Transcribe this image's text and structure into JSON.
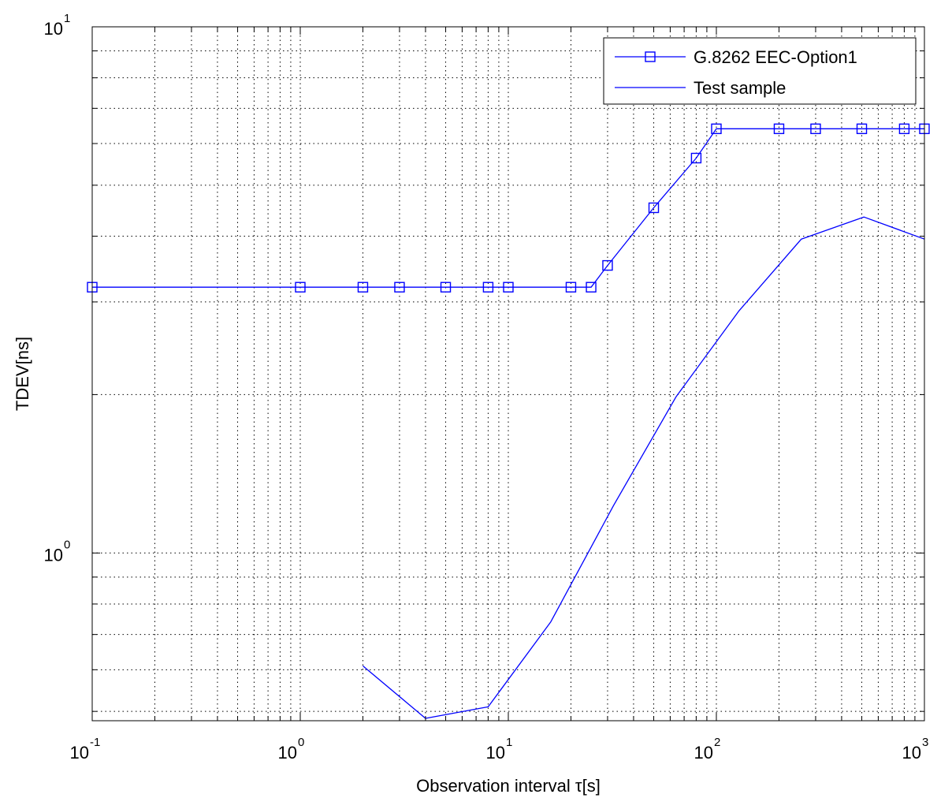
{
  "chart_data": {
    "type": "line",
    "xlabel": "Observation interval τ[s]",
    "ylabel": "TDEV[ns]",
    "x_scale": "log",
    "y_scale": "log",
    "xlim": [
      0.1,
      1000
    ],
    "ylim": [
      0.48,
      10
    ],
    "grid": true,
    "legend_position": "top-right",
    "x_tick_labels": [
      {
        "base": "10",
        "exp": "-1"
      },
      {
        "base": "10",
        "exp": "0"
      },
      {
        "base": "10",
        "exp": "1"
      },
      {
        "base": "10",
        "exp": "2"
      },
      {
        "base": "10",
        "exp": "3"
      }
    ],
    "y_tick_labels": [
      {
        "base": "10",
        "exp": "0"
      },
      {
        "base": "10",
        "exp": "1"
      }
    ],
    "series": [
      {
        "name": "G.8262 EEC-Option1",
        "color": "#0000ff",
        "marker": "square",
        "x": [
          0.1,
          1,
          2,
          3,
          5,
          8,
          10,
          20,
          25,
          30,
          50,
          80,
          100,
          200,
          300,
          500,
          800,
          1000
        ],
        "y": [
          3.2,
          3.2,
          3.2,
          3.2,
          3.2,
          3.2,
          3.2,
          3.2,
          3.2,
          3.52,
          4.53,
          5.63,
          6.4,
          6.4,
          6.4,
          6.4,
          6.4,
          6.4
        ]
      },
      {
        "name": "Test sample",
        "color": "#0000ff",
        "marker": "none",
        "x": [
          2,
          4,
          8,
          16,
          32,
          64,
          128,
          256,
          512,
          1000
        ],
        "y": [
          0.61,
          0.485,
          0.51,
          0.74,
          1.23,
          1.98,
          2.88,
          3.95,
          4.35,
          3.95
        ]
      }
    ]
  }
}
